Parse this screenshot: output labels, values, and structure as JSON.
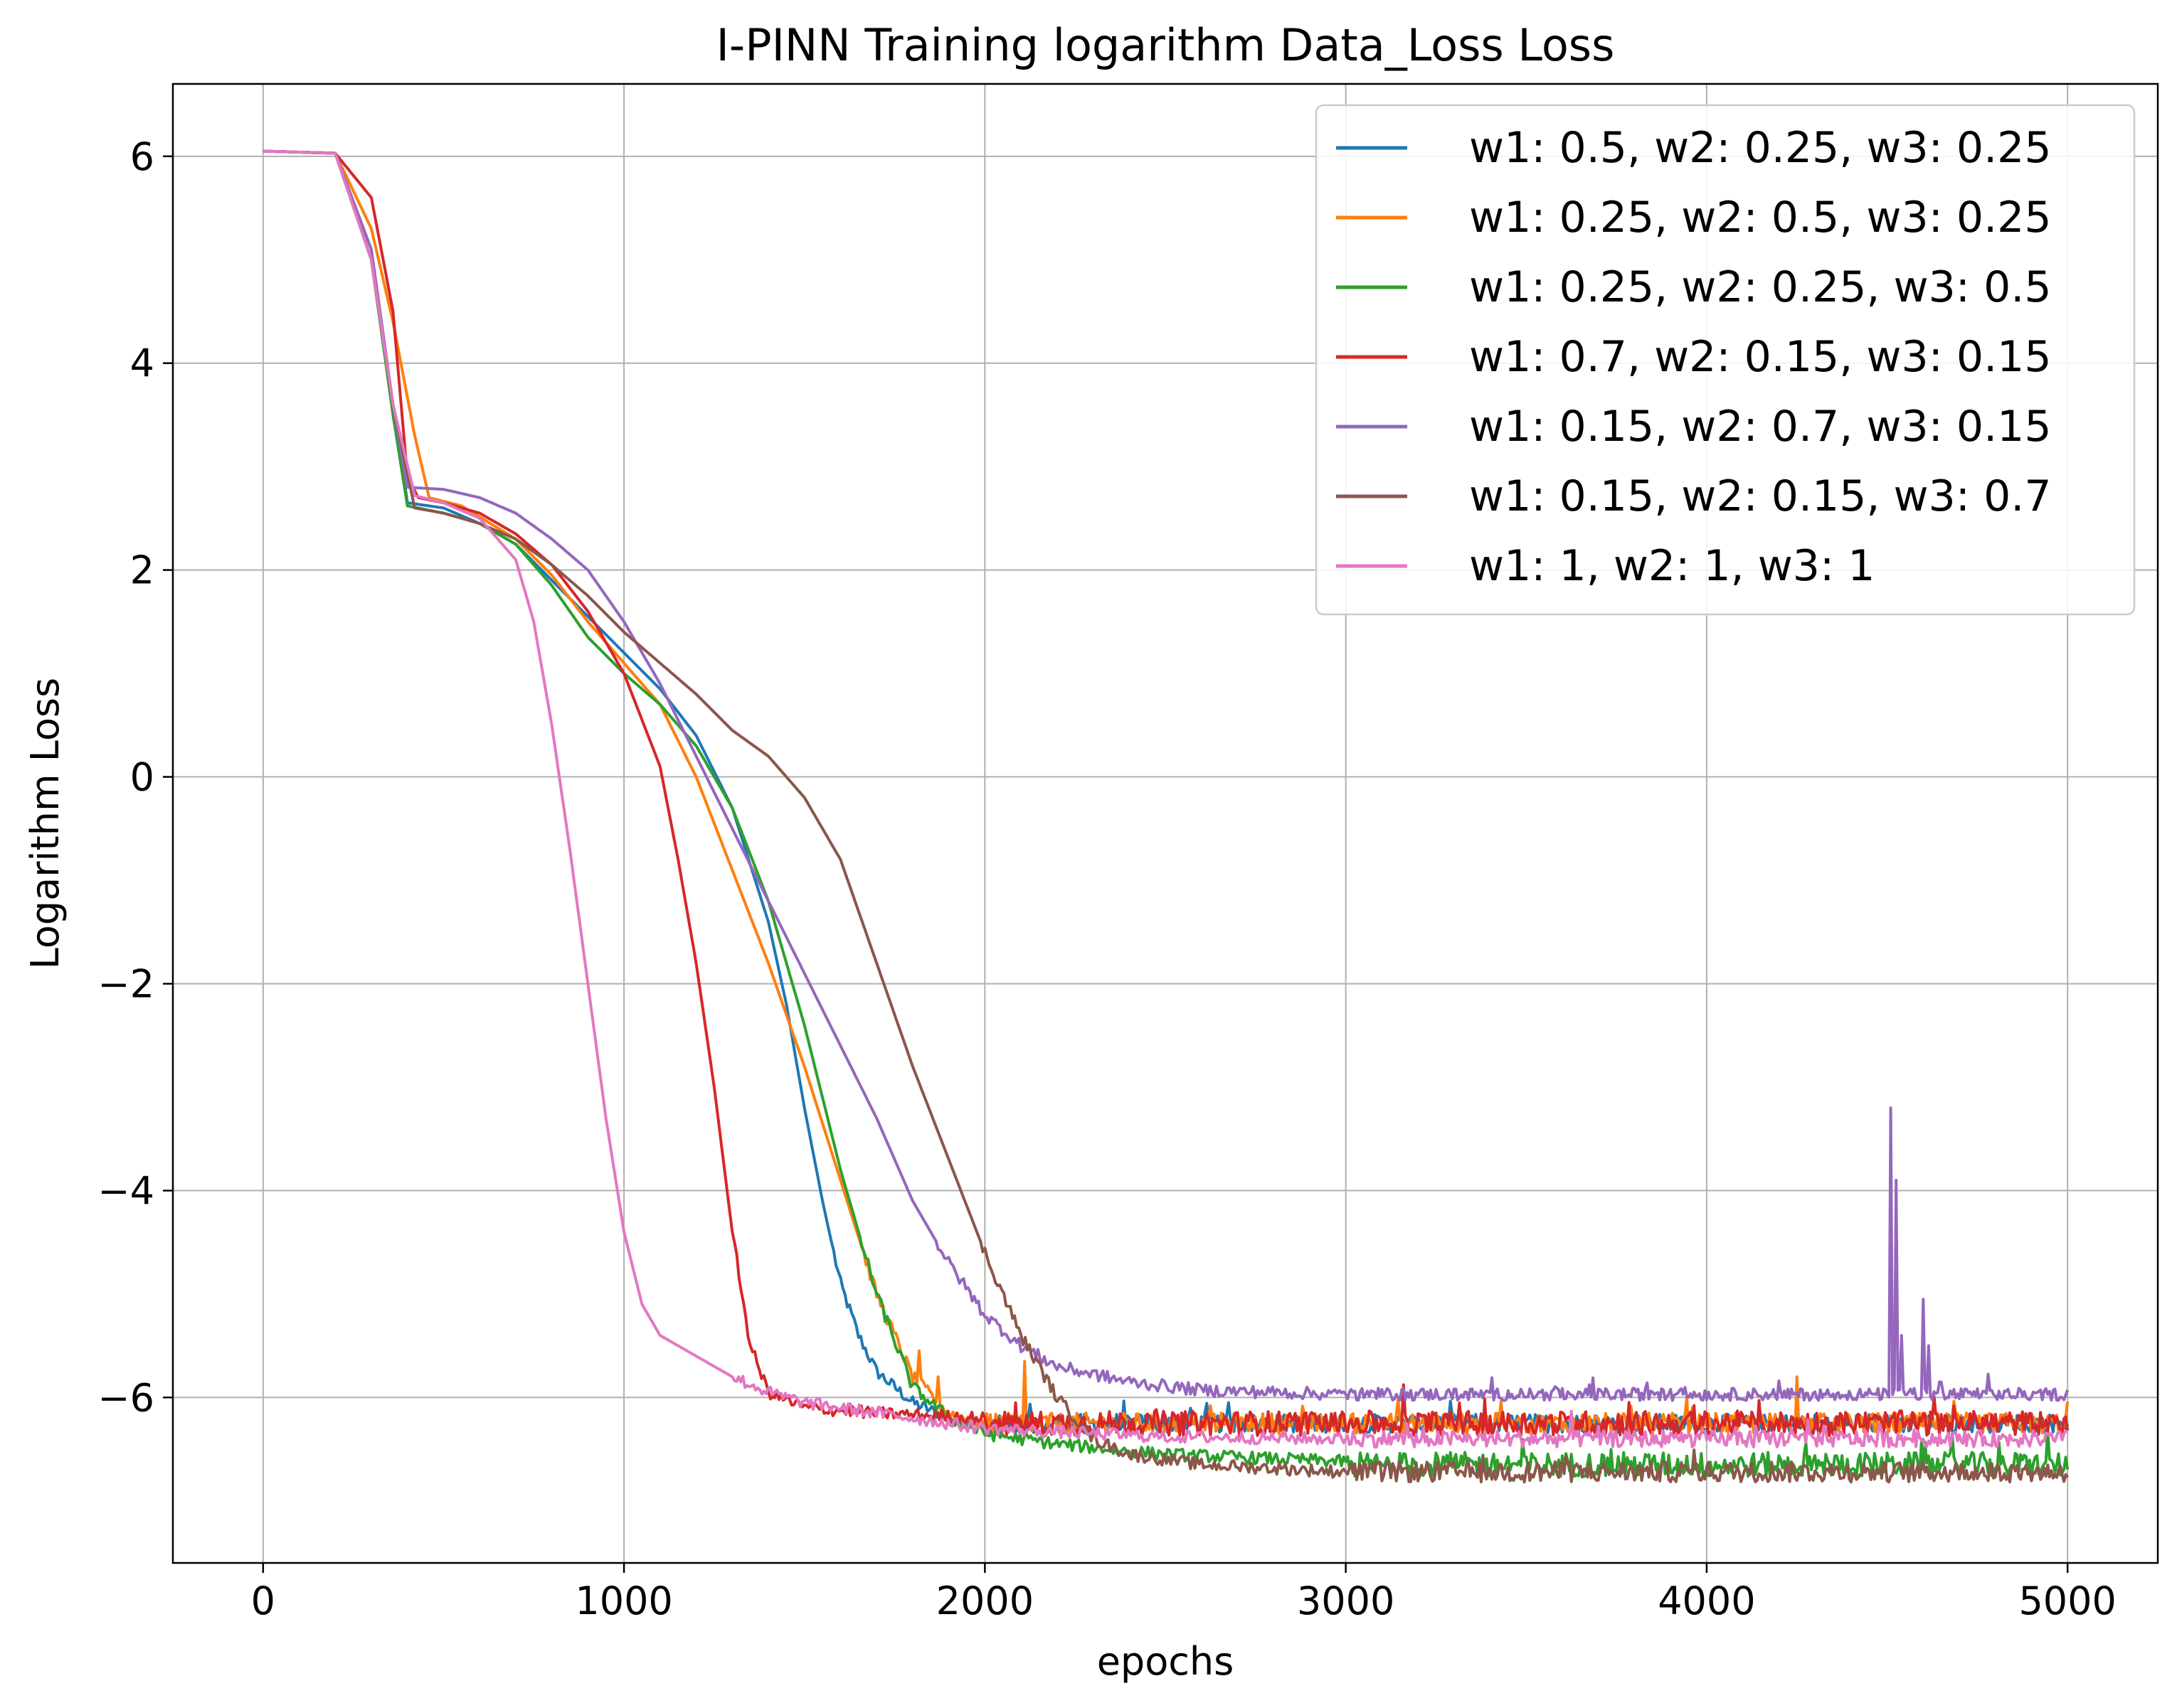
{
  "chart_data": {
    "type": "line",
    "title": "I-PINN Training logarithm Data_Loss Loss",
    "xlabel": "epochs",
    "ylabel": "Logarithm Loss",
    "xlim": [
      -250,
      5250
    ],
    "ylim": [
      -7.6,
      6.7
    ],
    "x_ticks": [
      0,
      1000,
      2000,
      3000,
      4000,
      5000
    ],
    "x_tick_labels": [
      "0",
      "1000",
      "2000",
      "3000",
      "4000",
      "5000"
    ],
    "y_ticks": [
      -6,
      -4,
      -2,
      0,
      2,
      4,
      6
    ],
    "y_tick_labels": [
      "−6",
      "−4",
      "−2",
      "0",
      "2",
      "4",
      "6"
    ],
    "grid": true,
    "legend_position": "top-right",
    "series": [
      {
        "name": "w1: 0.5, w2: 0.25, w3: 0.25",
        "color": "#1f77b4",
        "points": [
          [
            0,
            6.05
          ],
          [
            200,
            6.03
          ],
          [
            300,
            5.0
          ],
          [
            360,
            3.6
          ],
          [
            400,
            2.65
          ],
          [
            500,
            2.6
          ],
          [
            600,
            2.45
          ],
          [
            700,
            2.25
          ],
          [
            800,
            1.9
          ],
          [
            900,
            1.55
          ],
          [
            1000,
            1.2
          ],
          [
            1100,
            0.85
          ],
          [
            1200,
            0.4
          ],
          [
            1300,
            -0.3
          ],
          [
            1400,
            -1.4
          ],
          [
            1450,
            -2.2
          ],
          [
            1500,
            -3.2
          ],
          [
            1550,
            -4.1
          ],
          [
            1600,
            -4.9
          ],
          [
            1650,
            -5.4
          ],
          [
            1700,
            -5.75
          ],
          [
            1800,
            -6.05
          ],
          [
            1900,
            -6.2
          ],
          [
            2000,
            -6.25
          ]
        ],
        "noise_from": 2000,
        "noise_level": -6.25,
        "noise_amp": 0.09
      },
      {
        "name": "w1: 0.25, w2: 0.5, w3: 0.25",
        "color": "#ff7f0e",
        "points": [
          [
            0,
            6.05
          ],
          [
            200,
            6.03
          ],
          [
            300,
            5.3
          ],
          [
            360,
            4.4
          ],
          [
            420,
            3.3
          ],
          [
            460,
            2.7
          ],
          [
            550,
            2.62
          ],
          [
            700,
            2.3
          ],
          [
            800,
            1.95
          ],
          [
            900,
            1.5
          ],
          [
            1000,
            1.1
          ],
          [
            1100,
            0.7
          ],
          [
            1200,
            0.0
          ],
          [
            1300,
            -0.9
          ],
          [
            1400,
            -1.8
          ],
          [
            1500,
            -2.8
          ],
          [
            1600,
            -3.9
          ],
          [
            1700,
            -5.0
          ],
          [
            1800,
            -5.8
          ],
          [
            1900,
            -6.15
          ],
          [
            2000,
            -6.25
          ]
        ],
        "noise_from": 2000,
        "noise_level": -6.25,
        "noise_amp": 0.1,
        "spikes": [
          [
            2110,
            -5.65
          ],
          [
            1820,
            -5.55
          ],
          [
            1870,
            -5.8
          ],
          [
            4250,
            -5.8
          ]
        ]
      },
      {
        "name": "w1: 0.25, w2: 0.25, w3: 0.5",
        "color": "#2ca02c",
        "points": [
          [
            0,
            6.05
          ],
          [
            200,
            6.03
          ],
          [
            300,
            5.0
          ],
          [
            360,
            3.5
          ],
          [
            400,
            2.62
          ],
          [
            500,
            2.55
          ],
          [
            600,
            2.45
          ],
          [
            700,
            2.25
          ],
          [
            800,
            1.85
          ],
          [
            900,
            1.35
          ],
          [
            1000,
            1.0
          ],
          [
            1100,
            0.7
          ],
          [
            1200,
            0.3
          ],
          [
            1300,
            -0.3
          ],
          [
            1400,
            -1.2
          ],
          [
            1500,
            -2.4
          ],
          [
            1600,
            -3.8
          ],
          [
            1700,
            -5.0
          ],
          [
            1800,
            -5.9
          ],
          [
            1900,
            -6.2
          ],
          [
            2000,
            -6.35
          ],
          [
            2200,
            -6.45
          ],
          [
            2500,
            -6.55
          ],
          [
            3000,
            -6.62
          ]
        ],
        "noise_from": 3000,
        "noise_level": -6.65,
        "noise_amp": 0.12
      },
      {
        "name": "w1: 0.7, w2: 0.15, w3: 0.15",
        "color": "#d62728",
        "points": [
          [
            0,
            6.05
          ],
          [
            200,
            6.03
          ],
          [
            300,
            5.6
          ],
          [
            360,
            4.5
          ],
          [
            400,
            2.9
          ],
          [
            430,
            2.7
          ],
          [
            500,
            2.65
          ],
          [
            600,
            2.55
          ],
          [
            700,
            2.35
          ],
          [
            800,
            2.05
          ],
          [
            900,
            1.6
          ],
          [
            1000,
            1.0
          ],
          [
            1100,
            0.1
          ],
          [
            1150,
            -0.8
          ],
          [
            1200,
            -1.8
          ],
          [
            1250,
            -3.0
          ],
          [
            1300,
            -4.4
          ],
          [
            1350,
            -5.5
          ],
          [
            1400,
            -5.95
          ],
          [
            1500,
            -6.1
          ],
          [
            1700,
            -6.15
          ],
          [
            2000,
            -6.2
          ]
        ],
        "noise_from": 2000,
        "noise_level": -6.25,
        "noise_amp": 0.12
      },
      {
        "name": "w1: 0.15, w2: 0.7, w3: 0.15",
        "color": "#9467bd",
        "points": [
          [
            0,
            6.05
          ],
          [
            200,
            6.03
          ],
          [
            300,
            5.1
          ],
          [
            360,
            3.6
          ],
          [
            400,
            2.8
          ],
          [
            500,
            2.78
          ],
          [
            600,
            2.7
          ],
          [
            700,
            2.55
          ],
          [
            800,
            2.3
          ],
          [
            900,
            2.0
          ],
          [
            1000,
            1.5
          ],
          [
            1100,
            0.9
          ],
          [
            1200,
            0.2
          ],
          [
            1300,
            -0.5
          ],
          [
            1400,
            -1.2
          ],
          [
            1500,
            -1.9
          ],
          [
            1600,
            -2.6
          ],
          [
            1700,
            -3.3
          ],
          [
            1800,
            -4.1
          ],
          [
            1900,
            -4.7
          ],
          [
            2000,
            -5.2
          ],
          [
            2100,
            -5.5
          ],
          [
            2200,
            -5.7
          ],
          [
            2400,
            -5.85
          ],
          [
            2600,
            -5.93
          ],
          [
            3000,
            -5.97
          ]
        ],
        "noise_from": 3000,
        "noise_level": -5.97,
        "noise_amp": 0.06,
        "spikes": [
          [
            4510,
            -3.2
          ],
          [
            4525,
            -3.9
          ],
          [
            4540,
            -5.4
          ],
          [
            4600,
            -5.05
          ],
          [
            4615,
            -5.5
          ],
          [
            4650,
            -5.85
          ]
        ]
      },
      {
        "name": "w1: 0.15, w2: 0.15, w3: 0.7",
        "color": "#8c564b",
        "points": [
          [
            0,
            6.05
          ],
          [
            200,
            6.03
          ],
          [
            300,
            5.0
          ],
          [
            360,
            3.6
          ],
          [
            420,
            2.6
          ],
          [
            500,
            2.55
          ],
          [
            600,
            2.45
          ],
          [
            700,
            2.3
          ],
          [
            800,
            2.05
          ],
          [
            900,
            1.75
          ],
          [
            1000,
            1.4
          ],
          [
            1100,
            1.1
          ],
          [
            1200,
            0.8
          ],
          [
            1300,
            0.45
          ],
          [
            1400,
            0.2
          ],
          [
            1500,
            -0.2
          ],
          [
            1600,
            -0.8
          ],
          [
            1700,
            -1.8
          ],
          [
            1800,
            -2.8
          ],
          [
            1900,
            -3.7
          ],
          [
            2000,
            -4.6
          ],
          [
            2100,
            -5.4
          ],
          [
            2200,
            -6.0
          ],
          [
            2300,
            -6.4
          ],
          [
            2400,
            -6.55
          ],
          [
            2600,
            -6.65
          ],
          [
            3000,
            -6.72
          ]
        ],
        "noise_from": 3000,
        "noise_level": -6.72,
        "noise_amp": 0.1
      },
      {
        "name": "w1: 1, w2: 1, w3: 1",
        "color": "#e377c2",
        "points": [
          [
            0,
            6.05
          ],
          [
            200,
            6.03
          ],
          [
            300,
            5.0
          ],
          [
            360,
            3.6
          ],
          [
            420,
            2.72
          ],
          [
            500,
            2.65
          ],
          [
            600,
            2.5
          ],
          [
            700,
            2.1
          ],
          [
            750,
            1.5
          ],
          [
            800,
            0.5
          ],
          [
            850,
            -0.7
          ],
          [
            900,
            -2.0
          ],
          [
            950,
            -3.3
          ],
          [
            1000,
            -4.4
          ],
          [
            1050,
            -5.1
          ],
          [
            1100,
            -5.4
          ],
          [
            1200,
            -5.6
          ],
          [
            1300,
            -5.8
          ],
          [
            1400,
            -5.95
          ],
          [
            1500,
            -6.05
          ],
          [
            1700,
            -6.15
          ],
          [
            2000,
            -6.3
          ],
          [
            2500,
            -6.38
          ],
          [
            3000,
            -6.4
          ]
        ],
        "noise_from": 3000,
        "noise_level": -6.4,
        "noise_amp": 0.08
      }
    ]
  }
}
